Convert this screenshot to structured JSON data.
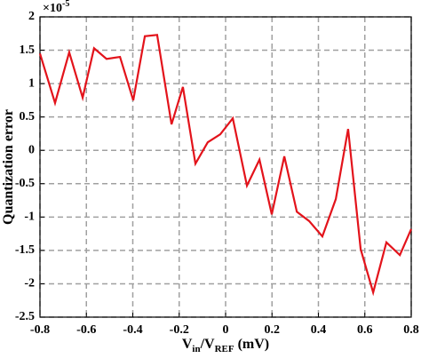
{
  "chart_data": {
    "type": "line",
    "xlabel_parts": [
      "V",
      "in",
      "/V",
      "REF",
      " (mV)"
    ],
    "ylabel": "Quantization error",
    "y_scale_label": {
      "base": "×10",
      "exponent": "-5"
    },
    "x": [
      -0.8,
      -0.735,
      -0.674,
      -0.616,
      -0.567,
      -0.513,
      -0.455,
      -0.398,
      -0.348,
      -0.295,
      -0.233,
      -0.184,
      -0.13,
      -0.077,
      -0.023,
      0.031,
      0.092,
      0.146,
      0.199,
      0.253,
      0.307,
      0.36,
      0.417,
      0.475,
      0.528,
      0.582,
      0.636,
      0.693,
      0.751,
      0.8
    ],
    "series": [
      {
        "color": "#e3131b",
        "values": [
          1.45,
          0.71,
          1.47,
          0.79,
          1.53,
          1.37,
          1.4,
          0.75,
          1.71,
          1.73,
          0.39,
          0.95,
          -0.2,
          0.12,
          0.24,
          0.48,
          -0.53,
          -0.14,
          -0.96,
          -0.09,
          -0.92,
          -1.06,
          -1.29,
          -0.73,
          0.32,
          -1.48,
          -2.13,
          -1.38,
          -1.57,
          -1.18
        ]
      }
    ],
    "xlim": [
      -0.8,
      0.8
    ],
    "xticks": [
      -0.8,
      -0.6,
      -0.4,
      -0.2,
      0,
      0.2,
      0.4,
      0.6,
      0.8
    ],
    "ylim": [
      -2.5,
      2
    ],
    "yticks": [
      -2.5,
      -2,
      -1.5,
      -1,
      -0.5,
      0,
      0.5,
      1,
      1.5,
      2
    ],
    "grid": true
  }
}
